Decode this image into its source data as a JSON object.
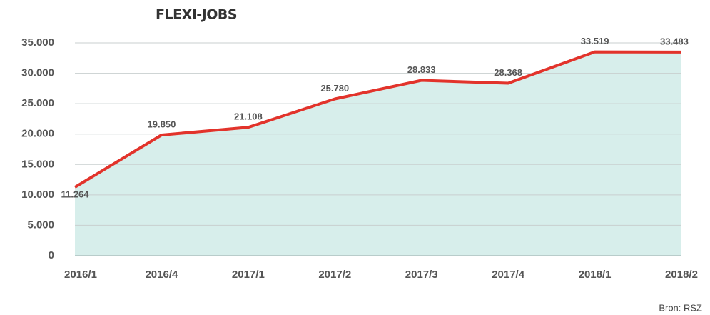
{
  "chart_data": {
    "type": "line",
    "title": "FLEXI-JOBS",
    "categories": [
      "2016/1",
      "2016/4",
      "2017/1",
      "2017/2",
      "2017/3",
      "2017/4",
      "2018/1",
      "2018/2"
    ],
    "series": [
      {
        "color": "#e2332b",
        "values": [
          11264,
          19850,
          21108,
          25780,
          28833,
          28368,
          33519,
          33483
        ],
        "value_labels": [
          "11.264",
          "19.850",
          "21.108",
          "25.780",
          "28.833",
          "28.368",
          "33.519",
          "33.483"
        ]
      }
    ],
    "area_color": "#d7eeeb",
    "ylim": [
      0,
      35000
    ],
    "yticks": [
      0,
      {
        "value": 5000,
        "label": "5.000"
      },
      {
        "value": 10000,
        "label": "10.000"
      },
      {
        "value": 15000,
        "label": "15.000"
      },
      {
        "value": 20000,
        "label": "20.000"
      },
      {
        "value": 25000,
        "label": "25.000"
      },
      {
        "value": 30000,
        "label": "30.000"
      },
      {
        "value": 35000,
        "label": "35.000"
      }
    ],
    "grid": true,
    "source": "Bron: RSZ"
  }
}
